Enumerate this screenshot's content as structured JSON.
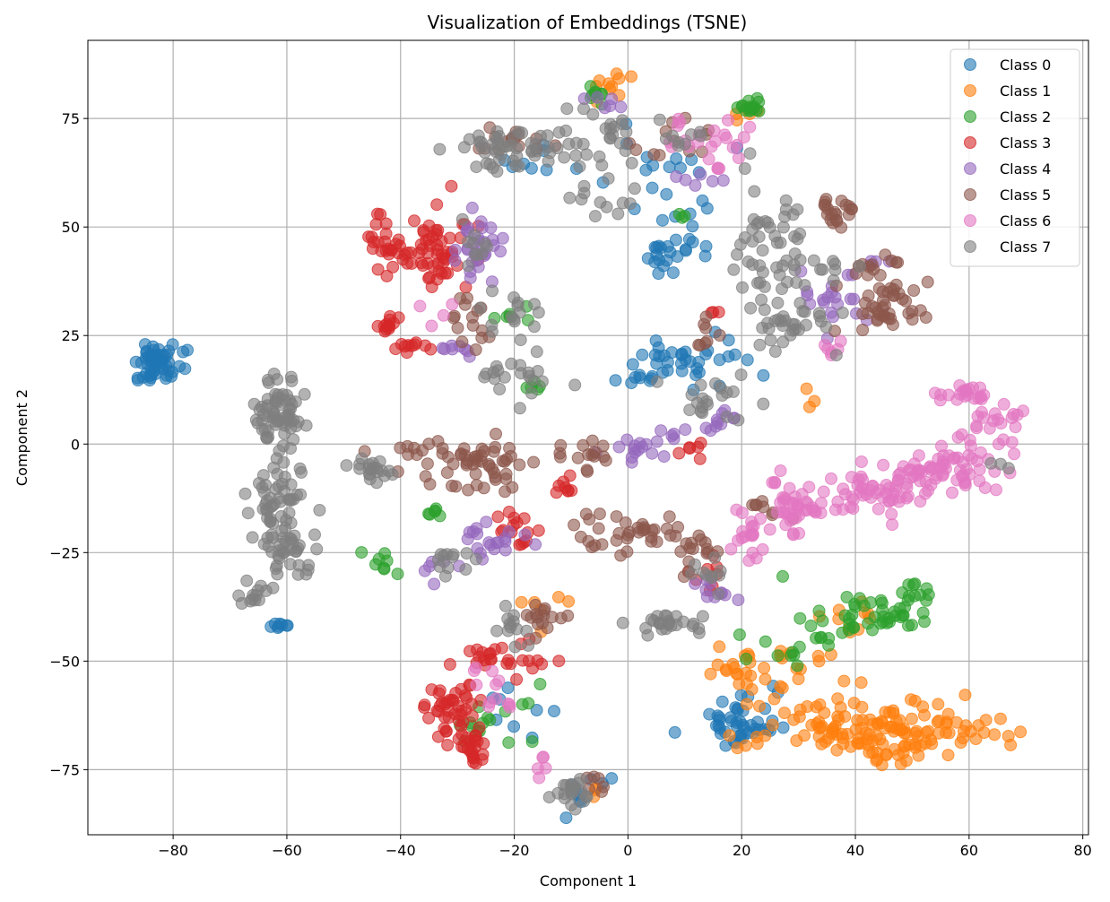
{
  "chart_data": {
    "type": "scatter",
    "title": "Visualization of Embeddings (TSNE)",
    "xlabel": "Component 1",
    "ylabel": "Component 2",
    "xlim": [
      -95,
      81
    ],
    "ylim": [
      -90,
      93
    ],
    "x_ticks": [
      -80,
      -60,
      -40,
      -20,
      0,
      20,
      40,
      60,
      80
    ],
    "y_ticks": [
      -75,
      -50,
      -25,
      0,
      25,
      50,
      75
    ],
    "grid": true,
    "legend_position": "top-right",
    "point_alpha": 0.6,
    "series": [
      {
        "name": "Class 0",
        "color": "#1f77b4",
        "clusters": [
          {
            "cx": -82,
            "cy": 19,
            "sx": 2.5,
            "sy": 2,
            "n": 45
          },
          {
            "cx": -85,
            "cy": 15.5,
            "sx": 1,
            "sy": 0.6,
            "n": 8
          },
          {
            "cx": -61,
            "cy": -42,
            "sx": 0.8,
            "sy": 0.7,
            "n": 8
          },
          {
            "cx": 5,
            "cy": 62,
            "sx": 4,
            "sy": 5,
            "n": 18
          },
          {
            "cx": 8,
            "cy": 45,
            "sx": 3,
            "sy": 4,
            "n": 25
          },
          {
            "cx": 12,
            "cy": 20,
            "sx": 5,
            "sy": 3,
            "n": 30
          },
          {
            "cx": 3,
            "cy": 16,
            "sx": 3,
            "sy": 1.5,
            "n": 12
          },
          {
            "cx": 20,
            "cy": -65,
            "sx": 3,
            "sy": 3.5,
            "n": 45
          },
          {
            "cx": -15,
            "cy": 65,
            "sx": 4,
            "sy": 2,
            "n": 8
          },
          {
            "cx": -7,
            "cy": -78,
            "sx": 2,
            "sy": 3,
            "n": 10
          },
          {
            "cx": -20,
            "cy": -60,
            "sx": 4,
            "sy": 4,
            "n": 8
          }
        ]
      },
      {
        "name": "Class 1",
        "color": "#ff7f0e",
        "clusters": [
          {
            "cx": 25,
            "cy": -52,
            "sx": 6,
            "sy": 3,
            "n": 35
          },
          {
            "cx": 40,
            "cy": -66,
            "sx": 9,
            "sy": 3.5,
            "n": 100
          },
          {
            "cx": 55,
            "cy": -65,
            "sx": 5,
            "sy": 3,
            "n": 30
          },
          {
            "cx": 47,
            "cy": -71,
            "sx": 3,
            "sy": 1.5,
            "n": 15
          },
          {
            "cx": 40,
            "cy": -40,
            "sx": 4,
            "sy": 3,
            "n": 10
          },
          {
            "cx": -3,
            "cy": 83,
            "sx": 2.5,
            "sy": 1.5,
            "n": 10
          },
          {
            "cx": 22,
            "cy": 77,
            "sx": 1.5,
            "sy": 1,
            "n": 5
          },
          {
            "cx": -15,
            "cy": -38,
            "sx": 2,
            "sy": 2,
            "n": 6
          },
          {
            "cx": 32,
            "cy": 10,
            "sx": 1,
            "sy": 1,
            "n": 3
          },
          {
            "cx": -5,
            "cy": -80,
            "sx": 1,
            "sy": 1,
            "n": 3
          }
        ]
      },
      {
        "name": "Class 2",
        "color": "#2ca02c",
        "clusters": [
          {
            "cx": 42,
            "cy": -40,
            "sx": 5,
            "sy": 3,
            "n": 40
          },
          {
            "cx": 49,
            "cy": -35,
            "sx": 2,
            "sy": 2,
            "n": 15
          },
          {
            "cx": 22,
            "cy": 77.5,
            "sx": 1.2,
            "sy": 1,
            "n": 15
          },
          {
            "cx": 27,
            "cy": -47,
            "sx": 5,
            "sy": 2,
            "n": 12
          },
          {
            "cx": -28,
            "cy": -65,
            "sx": 2,
            "sy": 3,
            "n": 8
          },
          {
            "cx": -42,
            "cy": -28,
            "sx": 2,
            "sy": 1.5,
            "n": 8
          },
          {
            "cx": -34,
            "cy": -16,
            "sx": 1,
            "sy": 0.8,
            "n": 6
          },
          {
            "cx": -20,
            "cy": 30,
            "sx": 1.5,
            "sy": 1,
            "n": 6
          },
          {
            "cx": -17,
            "cy": 13,
            "sx": 1,
            "sy": 0.8,
            "n": 5
          },
          {
            "cx": -6,
            "cy": 81,
            "sx": 2,
            "sy": 1,
            "n": 8
          },
          {
            "cx": 10,
            "cy": 53,
            "sx": 1,
            "sy": 1,
            "n": 3
          },
          {
            "cx": -20,
            "cy": -62,
            "sx": 3,
            "sy": 4,
            "n": 8
          }
        ]
      },
      {
        "name": "Class 3",
        "color": "#d62728",
        "clusters": [
          {
            "cx": -30,
            "cy": -62,
            "sx": 2.5,
            "sy": 4,
            "n": 45
          },
          {
            "cx": -27,
            "cy": -70,
            "sx": 2,
            "sy": 1.5,
            "n": 20
          },
          {
            "cx": -25,
            "cy": -49,
            "sx": 2,
            "sy": 1.5,
            "n": 15
          },
          {
            "cx": -42,
            "cy": 46,
            "sx": 2,
            "sy": 4,
            "n": 30
          },
          {
            "cx": -33,
            "cy": 45,
            "sx": 3,
            "sy": 6,
            "n": 50
          },
          {
            "cx": -43,
            "cy": 27.5,
            "sx": 1.5,
            "sy": 1,
            "n": 12
          },
          {
            "cx": -38,
            "cy": 23,
            "sx": 2,
            "sy": 0.8,
            "n": 10
          },
          {
            "cx": -20,
            "cy": -20,
            "sx": 2,
            "sy": 2.5,
            "n": 15
          },
          {
            "cx": -11,
            "cy": -10,
            "sx": 1.5,
            "sy": 1.5,
            "n": 8
          },
          {
            "cx": 12,
            "cy": 0,
            "sx": 2,
            "sy": 1.5,
            "n": 6
          },
          {
            "cx": -18,
            "cy": -50,
            "sx": 4,
            "sy": 2,
            "n": 10
          },
          {
            "cx": 16,
            "cy": -28,
            "sx": 2,
            "sy": 2,
            "n": 8
          },
          {
            "cx": 15,
            "cy": 30,
            "sx": 1,
            "sy": 1,
            "n": 3
          }
        ]
      },
      {
        "name": "Class 4",
        "color": "#9467bd",
        "clusters": [
          {
            "cx": -26,
            "cy": 45,
            "sx": 2,
            "sy": 5,
            "n": 30
          },
          {
            "cx": -25,
            "cy": -22,
            "sx": 3,
            "sy": 2,
            "n": 20
          },
          {
            "cx": 2,
            "cy": 0,
            "sx": 4,
            "sy": 2,
            "n": 20
          },
          {
            "cx": 36,
            "cy": 33,
            "sx": 2.5,
            "sy": 3,
            "n": 20
          },
          {
            "cx": 16,
            "cy": 5,
            "sx": 2.5,
            "sy": 1.5,
            "n": 10
          },
          {
            "cx": 15,
            "cy": -34,
            "sx": 2,
            "sy": 2,
            "n": 10
          },
          {
            "cx": -30,
            "cy": 22,
            "sx": 2,
            "sy": 1.5,
            "n": 8
          },
          {
            "cx": 44,
            "cy": 42,
            "sx": 1,
            "sy": 1,
            "n": 4
          },
          {
            "cx": -3,
            "cy": 78,
            "sx": 2,
            "sy": 1.5,
            "n": 6
          },
          {
            "cx": 12,
            "cy": 60,
            "sx": 2,
            "sy": 3,
            "n": 6
          },
          {
            "cx": -33,
            "cy": -28,
            "sx": 1.5,
            "sy": 1.5,
            "n": 6
          }
        ]
      },
      {
        "name": "Class 5",
        "color": "#8c564b",
        "clusters": [
          {
            "cx": -25,
            "cy": -5,
            "sx": 2.5,
            "sy": 3,
            "n": 40
          },
          {
            "cx": 47,
            "cy": 32,
            "sx": 4,
            "sy": 3,
            "n": 40
          },
          {
            "cx": 37,
            "cy": 53,
            "sx": 1.5,
            "sy": 2,
            "n": 20
          },
          {
            "cx": 44,
            "cy": 40,
            "sx": 2,
            "sy": 2,
            "n": 12
          },
          {
            "cx": 0,
            "cy": -20,
            "sx": 5,
            "sy": 3,
            "n": 35
          },
          {
            "cx": -8,
            "cy": -3,
            "sx": 3,
            "sy": 2,
            "n": 15
          },
          {
            "cx": -35,
            "cy": -2,
            "sx": 4,
            "sy": 3,
            "n": 20
          },
          {
            "cx": -20,
            "cy": 70,
            "sx": 3,
            "sy": 2,
            "n": 15
          },
          {
            "cx": 8,
            "cy": 70,
            "sx": 4,
            "sy": 3,
            "n": 12
          },
          {
            "cx": -15,
            "cy": -40,
            "sx": 2,
            "sy": 2,
            "n": 15
          },
          {
            "cx": -27,
            "cy": 30,
            "sx": 2,
            "sy": 4,
            "n": 15
          },
          {
            "cx": 12,
            "cy": -25,
            "sx": 3,
            "sy": 3,
            "n": 15
          },
          {
            "cx": 25,
            "cy": -15,
            "sx": 2,
            "sy": 1.5,
            "n": 8
          },
          {
            "cx": -6,
            "cy": -78,
            "sx": 1.5,
            "sy": 2,
            "n": 6
          },
          {
            "cx": 14,
            "cy": 25,
            "sx": 2,
            "sy": 2,
            "n": 8
          }
        ]
      },
      {
        "name": "Class 6",
        "color": "#e377c2",
        "clusters": [
          {
            "cx": 30,
            "cy": -15,
            "sx": 4,
            "sy": 3,
            "n": 45
          },
          {
            "cx": 42,
            "cy": -11,
            "sx": 5,
            "sy": 2.5,
            "n": 50
          },
          {
            "cx": 52,
            "cy": -7,
            "sx": 4,
            "sy": 2.5,
            "n": 40
          },
          {
            "cx": 60,
            "cy": -4,
            "sx": 3,
            "sy": 2.5,
            "n": 25
          },
          {
            "cx": 65,
            "cy": 5,
            "sx": 3,
            "sy": 3,
            "n": 25
          },
          {
            "cx": 58,
            "cy": 12,
            "sx": 3,
            "sy": 1,
            "n": 18
          },
          {
            "cx": 21,
            "cy": -22,
            "sx": 1.5,
            "sy": 2.5,
            "n": 15
          },
          {
            "cx": 17,
            "cy": 70,
            "sx": 2.5,
            "sy": 3,
            "n": 18
          },
          {
            "cx": 35,
            "cy": 22,
            "sx": 1.5,
            "sy": 1,
            "n": 6
          },
          {
            "cx": -23,
            "cy": -57,
            "sx": 3,
            "sy": 3,
            "n": 12
          },
          {
            "cx": -15,
            "cy": -75,
            "sx": 1,
            "sy": 2,
            "n": 5
          },
          {
            "cx": 8,
            "cy": 72,
            "sx": 2,
            "sy": 2,
            "n": 6
          },
          {
            "cx": -35,
            "cy": 30,
            "sx": 2,
            "sy": 2,
            "n": 4
          }
        ]
      },
      {
        "name": "Class 7",
        "color": "#7f7f7f",
        "clusters": [
          {
            "cx": -60,
            "cy": 8,
            "sx": 2.5,
            "sy": 5,
            "n": 50
          },
          {
            "cx": -64,
            "cy": 5,
            "sx": 1.5,
            "sy": 2.5,
            "n": 15
          },
          {
            "cx": -61,
            "cy": -12,
            "sx": 2.5,
            "sy": 5,
            "n": 50
          },
          {
            "cx": -61,
            "cy": -25,
            "sx": 2.5,
            "sy": 3,
            "n": 35
          },
          {
            "cx": -66,
            "cy": -35,
            "sx": 1.2,
            "sy": 1.5,
            "n": 12
          },
          {
            "cx": -45,
            "cy": -6,
            "sx": 2,
            "sy": 1.5,
            "n": 20
          },
          {
            "cx": -20,
            "cy": 68,
            "sx": 7,
            "sy": 3,
            "n": 50
          },
          {
            "cx": -5,
            "cy": 70,
            "sx": 5,
            "sy": 4,
            "n": 25
          },
          {
            "cx": 25,
            "cy": 45,
            "sx": 3,
            "sy": 7,
            "n": 50
          },
          {
            "cx": 28,
            "cy": 28,
            "sx": 4,
            "sy": 3,
            "n": 30
          },
          {
            "cx": 8,
            "cy": -41,
            "sx": 3,
            "sy": 1.5,
            "n": 25
          },
          {
            "cx": 14,
            "cy": 10,
            "sx": 3,
            "sy": 3,
            "n": 20
          },
          {
            "cx": -10,
            "cy": -80,
            "sx": 2,
            "sy": 2,
            "n": 20
          },
          {
            "cx": -20,
            "cy": 15,
            "sx": 4,
            "sy": 3,
            "n": 20
          },
          {
            "cx": -20,
            "cy": 30,
            "sx": 3,
            "sy": 3,
            "n": 15
          },
          {
            "cx": -32,
            "cy": -27,
            "sx": 3,
            "sy": 2,
            "n": 12
          },
          {
            "cx": -20,
            "cy": -42,
            "sx": 2,
            "sy": 2,
            "n": 12
          },
          {
            "cx": -27,
            "cy": 47,
            "sx": 1.5,
            "sy": 3,
            "n": 10
          },
          {
            "cx": -3,
            "cy": 55,
            "sx": 3,
            "sy": 2,
            "n": 10
          },
          {
            "cx": 35,
            "cy": 40,
            "sx": 3,
            "sy": 2,
            "n": 10
          },
          {
            "cx": 15,
            "cy": -30,
            "sx": 2,
            "sy": 2,
            "n": 10
          },
          {
            "cx": 10,
            "cy": 70,
            "sx": 3,
            "sy": 2,
            "n": 8
          },
          {
            "cx": 65,
            "cy": -5,
            "sx": 1,
            "sy": 1,
            "n": 3
          }
        ]
      }
    ]
  }
}
